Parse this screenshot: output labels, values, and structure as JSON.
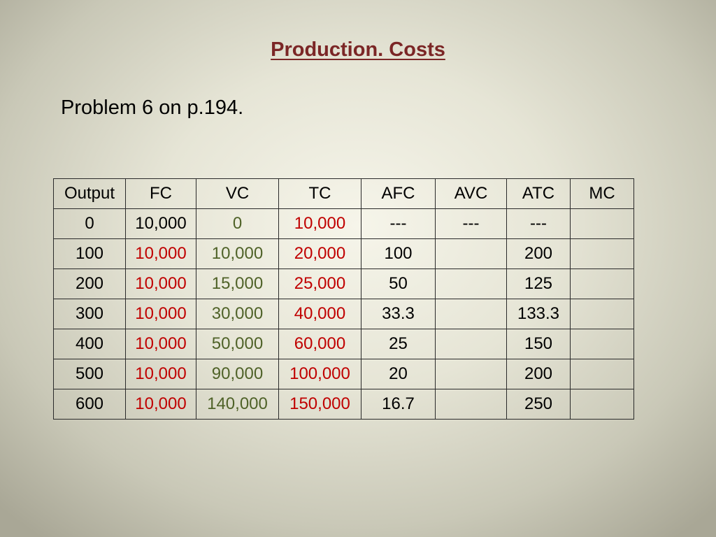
{
  "title": "Production. Costs",
  "subtitle": "Problem 6 on p.194.",
  "colors": {
    "title": "#7b2626",
    "red_values": "#c00000",
    "green_values": "#4f6228"
  },
  "table": {
    "headers": [
      "Output",
      "FC",
      "VC",
      "TC",
      "AFC",
      "AVC",
      "ATC",
      "MC"
    ],
    "rows": [
      {
        "output": "0",
        "fc": "10,000",
        "vc": "0",
        "tc": "10,000",
        "afc": "---",
        "avc": "---",
        "atc": "---",
        "mc": ""
      },
      {
        "output": "100",
        "fc": "10,000",
        "vc": "10,000",
        "tc": "20,000",
        "afc": "100",
        "avc": "",
        "atc": "200",
        "mc": ""
      },
      {
        "output": "200",
        "fc": "10,000",
        "vc": "15,000",
        "tc": "25,000",
        "afc": "50",
        "avc": "",
        "atc": "125",
        "mc": ""
      },
      {
        "output": "300",
        "fc": "10,000",
        "vc": "30,000",
        "tc": "40,000",
        "afc": "33.3",
        "avc": "",
        "atc": "133.3",
        "mc": ""
      },
      {
        "output": "400",
        "fc": "10,000",
        "vc": "50,000",
        "tc": "60,000",
        "afc": "25",
        "avc": "",
        "atc": "150",
        "mc": ""
      },
      {
        "output": "500",
        "fc": "10,000",
        "vc": "90,000",
        "tc": "100,000",
        "afc": "20",
        "avc": "",
        "atc": "200",
        "mc": ""
      },
      {
        "output": "600",
        "fc": "10,000",
        "vc": "140,000",
        "tc": "150,000",
        "afc": "16.7",
        "avc": "",
        "atc": "250",
        "mc": ""
      }
    ]
  }
}
